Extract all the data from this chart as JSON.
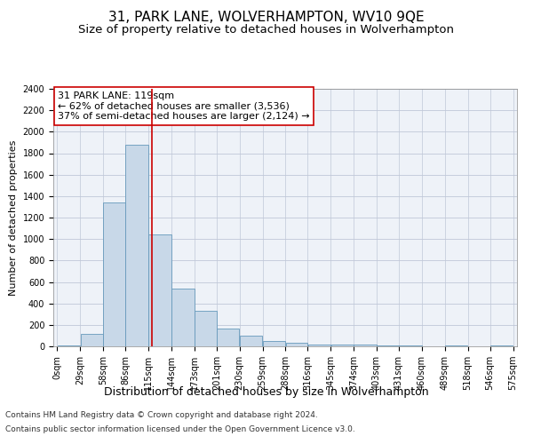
{
  "title": "31, PARK LANE, WOLVERHAMPTON, WV10 9QE",
  "subtitle": "Size of property relative to detached houses in Wolverhampton",
  "xlabel": "Distribution of detached houses by size in Wolverhampton",
  "ylabel": "Number of detached properties",
  "footer_line1": "Contains HM Land Registry data © Crown copyright and database right 2024.",
  "footer_line2": "Contains public sector information licensed under the Open Government Licence v3.0.",
  "annotation_title": "31 PARK LANE: 119sqm",
  "annotation_line1": "← 62% of detached houses are smaller (3,536)",
  "annotation_line2": "37% of semi-detached houses are larger (2,124) →",
  "property_size_sqm": 119,
  "bar_edges": [
    0,
    29,
    58,
    86,
    115,
    144,
    173,
    201,
    230,
    259,
    288,
    316,
    345,
    374,
    403,
    431,
    460,
    489,
    518,
    546,
    575
  ],
  "bar_heights": [
    10,
    120,
    1340,
    1880,
    1040,
    540,
    330,
    165,
    100,
    50,
    30,
    20,
    20,
    15,
    5,
    5,
    0,
    5,
    0,
    5
  ],
  "bar_color": "#c8d8e8",
  "bar_edgecolor": "#6699bb",
  "vline_color": "#cc0000",
  "vline_x": 119,
  "ylim": [
    0,
    2400
  ],
  "yticks": [
    0,
    200,
    400,
    600,
    800,
    1000,
    1200,
    1400,
    1600,
    1800,
    2000,
    2200,
    2400
  ],
  "grid_color": "#c0c8d8",
  "background_color": "#eef2f8",
  "annotation_box_color": "#ffffff",
  "annotation_box_edgecolor": "#cc0000",
  "title_fontsize": 11,
  "subtitle_fontsize": 9.5,
  "xlabel_fontsize": 9,
  "ylabel_fontsize": 8,
  "tick_fontsize": 7,
  "annotation_fontsize": 8,
  "footer_fontsize": 6.5
}
